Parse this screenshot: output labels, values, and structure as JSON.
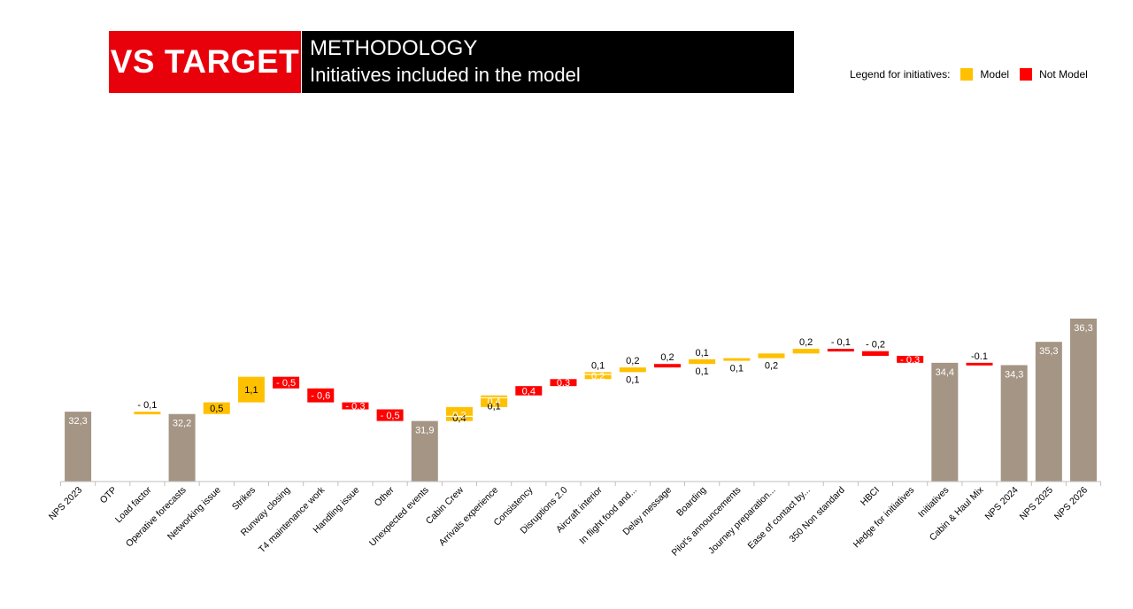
{
  "header": {
    "badge": "VS TARGET",
    "title": "METHODOLOGY",
    "subtitle": "Initiatives included in the model"
  },
  "legend": {
    "label": "Legend for initiatives:",
    "items": [
      {
        "name": "Model",
        "color": "#ffc000"
      },
      {
        "name": "Not Model",
        "color": "#ff0000"
      }
    ]
  },
  "colors": {
    "total": "#a49585",
    "model": "#ffc000",
    "not_model": "#ff0000"
  },
  "chart_data": {
    "type": "waterfall",
    "title": "",
    "xlabel": "",
    "ylabel": "",
    "categories": [
      "NPS 2023",
      "OTP",
      "Load factor",
      "Operative forecasts",
      "Networking issue",
      "Strikes",
      "Runway closing",
      "T4 maintenance work",
      "Handling issue",
      "Other",
      "Unexpected events",
      "Cabin Crew",
      "Arrivals experience",
      "Consistency",
      "Disruptions 2.0",
      "Aircraft interior",
      "In flight food and...",
      "Delay message",
      "Boarding",
      "Pilot's announcements",
      "Journey preparation...",
      "Ease of contact by...",
      "350 Non standard",
      "HBCI",
      "Hedge for initiatives",
      "Initiatives",
      "Cabin & Haul Mix",
      "NPS 2024",
      "NPS 2025",
      "NPS 2026"
    ],
    "bars": [
      {
        "kind": "total",
        "start": 0,
        "end": 32.3,
        "labels": [
          {
            "text": "32,3",
            "pos": "inside-top",
            "color": "white"
          }
        ]
      },
      {
        "kind": "empty",
        "start": 0,
        "end": 0,
        "labels": []
      },
      {
        "kind": "model",
        "start": 32.3,
        "end": 32.2,
        "labels": [
          {
            "text": "- 0,1",
            "pos": "above",
            "color": "black"
          }
        ]
      },
      {
        "kind": "total",
        "start": 0,
        "end": 32.2,
        "labels": [
          {
            "text": "32,2",
            "pos": "inside-top",
            "color": "white"
          }
        ]
      },
      {
        "kind": "model",
        "start": 32.2,
        "end": 32.7,
        "labels": [
          {
            "text": "0,5",
            "pos": "center",
            "color": "black"
          }
        ]
      },
      {
        "kind": "model",
        "start": 32.7,
        "end": 33.8,
        "labels": [
          {
            "text": "1,1",
            "pos": "center",
            "color": "black"
          }
        ]
      },
      {
        "kind": "not_model",
        "start": 33.8,
        "end": 33.3,
        "labels": [
          {
            "text": "- 0,5",
            "pos": "center",
            "color": "white"
          }
        ]
      },
      {
        "kind": "not_model",
        "start": 33.3,
        "end": 32.7,
        "labels": [
          {
            "text": "- 0,6",
            "pos": "center",
            "color": "white"
          }
        ]
      },
      {
        "kind": "not_model",
        "start": 32.7,
        "end": 32.4,
        "labels": [
          {
            "text": "- 0,3",
            "pos": "center",
            "color": "white"
          }
        ]
      },
      {
        "kind": "not_model",
        "start": 32.4,
        "end": 31.9,
        "labels": [
          {
            "text": "- 0,5",
            "pos": "center",
            "color": "white"
          }
        ]
      },
      {
        "kind": "total",
        "start": 0,
        "end": 31.9,
        "labels": [
          {
            "text": "31,9",
            "pos": "inside-top",
            "color": "white"
          }
        ]
      },
      {
        "kind": "split_model",
        "start": 31.9,
        "end": 32.5,
        "split": 32.1,
        "labels": [
          {
            "text": "0,4",
            "pos": "upper",
            "color": "black"
          },
          {
            "text": "0,2",
            "pos": "lower",
            "color": "white"
          }
        ]
      },
      {
        "kind": "split_model",
        "start": 32.5,
        "end": 33.0,
        "split": 32.9,
        "labels": [
          {
            "text": "0,1",
            "pos": "upper",
            "color": "black"
          },
          {
            "text": "0,4",
            "pos": "lower",
            "color": "white"
          }
        ]
      },
      {
        "kind": "not_model",
        "start": 33.0,
        "end": 33.4,
        "labels": [
          {
            "text": "0,4",
            "pos": "center",
            "color": "white"
          }
        ]
      },
      {
        "kind": "not_model",
        "start": 33.4,
        "end": 33.7,
        "labels": [
          {
            "text": "0,3",
            "pos": "center",
            "color": "white"
          }
        ]
      },
      {
        "kind": "split_model",
        "start": 33.7,
        "end": 34.0,
        "split": 33.9,
        "labels": [
          {
            "text": "0,1",
            "pos": "above",
            "color": "black"
          },
          {
            "text": "0,2",
            "pos": "center",
            "color": "white"
          }
        ]
      },
      {
        "kind": "model",
        "start": 34.0,
        "end": 34.2,
        "labels": [
          {
            "text": "0,2",
            "pos": "above",
            "color": "black"
          },
          {
            "text": "0,1",
            "pos": "below",
            "color": "black"
          }
        ]
      },
      {
        "kind": "not_model",
        "start": 34.2,
        "end": 34.35,
        "labels": [
          {
            "text": "0,2",
            "pos": "above",
            "color": "black"
          }
        ]
      },
      {
        "kind": "model",
        "start": 34.35,
        "end": 34.55,
        "labels": [
          {
            "text": "0,1",
            "pos": "above",
            "color": "black"
          },
          {
            "text": "0,1",
            "pos": "below",
            "color": "black"
          }
        ]
      },
      {
        "kind": "model",
        "start": 34.55,
        "end": 34.6,
        "labels": [
          {
            "text": "0,1",
            "pos": "below",
            "color": "black"
          }
        ]
      },
      {
        "kind": "model",
        "start": 34.6,
        "end": 34.8,
        "labels": [
          {
            "text": "0,2",
            "pos": "below",
            "color": "black"
          }
        ]
      },
      {
        "kind": "model",
        "start": 34.8,
        "end": 35.0,
        "labels": [
          {
            "text": "0,2",
            "pos": "above",
            "color": "black"
          }
        ]
      },
      {
        "kind": "not_model",
        "start": 35.0,
        "end": 34.9,
        "labels": [
          {
            "text": "- 0,1",
            "pos": "above",
            "color": "black"
          }
        ]
      },
      {
        "kind": "not_model",
        "start": 34.9,
        "end": 34.7,
        "labels": [
          {
            "text": "- 0,2",
            "pos": "above",
            "color": "black"
          }
        ]
      },
      {
        "kind": "not_model",
        "start": 34.7,
        "end": 34.4,
        "labels": [
          {
            "text": "- 0,3",
            "pos": "center",
            "color": "white"
          }
        ]
      },
      {
        "kind": "total",
        "start": 0,
        "end": 34.4,
        "labels": [
          {
            "text": "34,4",
            "pos": "inside-top",
            "color": "white"
          }
        ]
      },
      {
        "kind": "not_model",
        "start": 34.4,
        "end": 34.3,
        "labels": [
          {
            "text": "-0.1",
            "pos": "above",
            "color": "black"
          }
        ]
      },
      {
        "kind": "total",
        "start": 0,
        "end": 34.3,
        "labels": [
          {
            "text": "34,3",
            "pos": "inside-top",
            "color": "white"
          }
        ]
      },
      {
        "kind": "total",
        "start": 0,
        "end": 35.3,
        "labels": [
          {
            "text": "35,3",
            "pos": "inside-top",
            "color": "white"
          }
        ]
      },
      {
        "kind": "total",
        "start": 0,
        "end": 36.3,
        "labels": [
          {
            "text": "36,3",
            "pos": "inside-top",
            "color": "white"
          }
        ]
      }
    ],
    "grid": false,
    "legend_position": "top-right"
  }
}
